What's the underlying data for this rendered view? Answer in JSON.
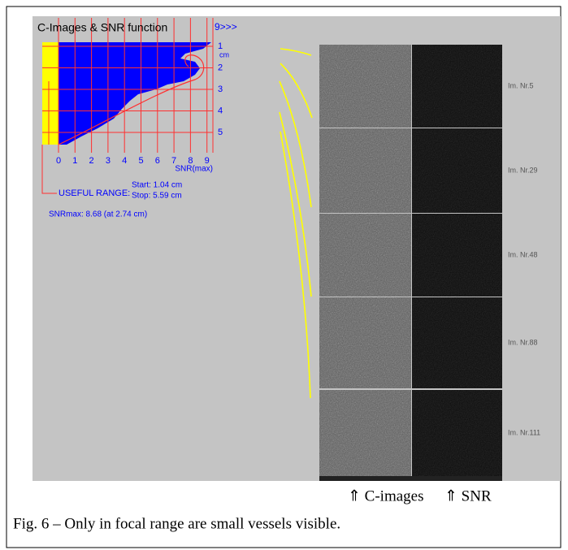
{
  "panel": {
    "title": "C-Images & SNR function",
    "top_marker": "9>>>",
    "y_axis": {
      "unit": "cm",
      "ticks": [
        "1",
        "2",
        "3",
        "4",
        "5"
      ]
    },
    "x_axis": {
      "label": "SNR(max)",
      "ticks": [
        "0",
        "1",
        "2",
        "3",
        "4",
        "5",
        "6",
        "7",
        "8",
        "9"
      ]
    },
    "useful_range": {
      "label": "USEFUL RANGE:",
      "start": "Start: 1.04 cm",
      "stop": "Stop: 5.59 cm"
    },
    "snr_max": "SNRmax: 8.68 (at 2.74 cm)"
  },
  "images": [
    {
      "label": "Im. Nr.5"
    },
    {
      "label": "Im. Nr.29"
    },
    {
      "label": "Im. Nr.48"
    },
    {
      "label": "Im. Nr.88"
    },
    {
      "label": "Im. Nr.111"
    }
  ],
  "column_labels": [
    "⇑ C-images",
    "⇑ SNR"
  ],
  "caption": "Fig. 6 – Only in focal range are small vessels visible."
}
